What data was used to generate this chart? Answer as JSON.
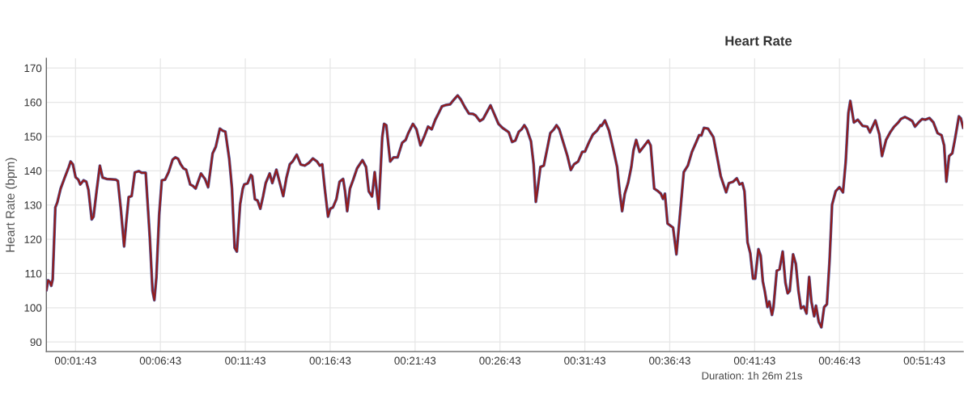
{
  "chart_data": {
    "type": "line",
    "title": "Heart Rate",
    "ylabel": "Heart Rate (bpm)",
    "annotations": [
      "Duration: 1h 26m 21s"
    ],
    "x": [
      0,
      0.0017,
      0.0035,
      0.0048,
      0.0062,
      0.0088,
      0.0107,
      0.014,
      0.018,
      0.022,
      0.0238,
      0.026,
      0.0287,
      0.0313,
      0.0333,
      0.0365,
      0.0392,
      0.0413,
      0.0445,
      0.0463,
      0.0493,
      0.0525,
      0.0552,
      0.0592,
      0.0683,
      0.0702,
      0.0732,
      0.0763,
      0.0783,
      0.0808,
      0.0837,
      0.0868,
      0.0908,
      0.0935,
      0.0975,
      0.1015,
      0.1042,
      0.106,
      0.108,
      0.1107,
      0.1133,
      0.1165,
      0.12,
      0.124,
      0.1267,
      0.1293,
      0.1318,
      0.1345,
      0.1372,
      0.1412,
      0.1438,
      0.1465,
      0.1518,
      0.1557,
      0.1588,
      0.1632,
      0.1663,
      0.1703,
      0.173,
      0.1757,
      0.1795,
      0.1822,
      0.1848,
      0.187,
      0.1902,
      0.1928,
      0.1942,
      0.1975,
      0.2007,
      0.202,
      0.2047,
      0.2073,
      0.21,
      0.2127,
      0.2153,
      0.2192,
      0.2218,
      0.2258,
      0.2285,
      0.2325,
      0.2357,
      0.239,
      0.2417,
      0.2458,
      0.2497,
      0.2537,
      0.2577,
      0.2617,
      0.2657,
      0.2683,
      0.2708,
      0.2733,
      0.2765,
      0.2787,
      0.2813,
      0.2847,
      0.2878,
      0.2913,
      0.2932,
      0.2953,
      0.298,
      0.3012,
      0.305,
      0.3103,
      0.3138,
      0.3165,
      0.3197,
      0.3223,
      0.3262,
      0.3297,
      0.3315,
      0.3337,
      0.3375,
      0.3408,
      0.3448,
      0.3493,
      0.3527,
      0.3553,
      0.3598,
      0.3633,
      0.3672,
      0.3712,
      0.3747,
      0.3783,
      0.3818,
      0.3852,
      0.3883,
      0.3923,
      0.3963,
      0.399,
      0.4037,
      0.4068,
      0.4108,
      0.4148,
      0.4188,
      0.4215,
      0.4255,
      0.4287,
      0.432,
      0.436,
      0.4392,
      0.4438,
      0.4478,
      0.4518,
      0.454,
      0.4572,
      0.4603,
      0.4638,
      0.4665,
      0.4692,
      0.4717,
      0.4757,
      0.4783,
      0.4805,
      0.4823,
      0.485,
      0.4883,
      0.4915,
      0.4947,
      0.4982,
      0.5008,
      0.5035,
      0.5075,
      0.5115,
      0.5148,
      0.518,
      0.522,
      0.526,
      0.5287,
      0.5325,
      0.5365,
      0.5405,
      0.544,
      0.545,
      0.5483,
      0.5523,
      0.5563,
      0.5603,
      0.563,
      0.5652,
      0.5678,
      0.571,
      0.5742,
      0.5763,
      0.579,
      0.5823,
      0.5867,
      0.5908,
      0.5932,
      0.5967,
      0.6005,
      0.6032,
      0.6053,
      0.6072,
      0.6098,
      0.6152,
      0.6185,
      0.6217,
      0.6257,
      0.6297,
      0.6337,
      0.6377,
      0.6408,
      0.643,
      0.6455,
      0.6495,
      0.6548,
      0.6583,
      0.662,
      0.6673,
      0.67,
      0.6742,
      0.6778,
      0.6805,
      0.6832,
      0.6853,
      0.6883,
      0.691,
      0.6937,
      0.6958,
      0.699,
      0.7012,
      0.7033,
      0.7052,
      0.7078,
      0.7097,
      0.7123,
      0.7138,
      0.717,
      0.7197,
      0.7228,
      0.7255,
      0.7277,
      0.7297,
      0.733,
      0.7357,
      0.7383,
      0.7408,
      0.7435,
      0.7462,
      0.7488,
      0.751,
      0.7537,
      0.7555,
      0.7582,
      0.7608,
      0.7635,
      0.7662,
      0.7688,
      0.7713,
      0.7748,
      0.7785,
      0.782,
      0.7847,
      0.7873,
      0.7892,
      0.7927,
      0.7965,
      0.8013,
      0.8058,
      0.8085,
      0.8138,
      0.8177,
      0.8203,
      0.8243,
      0.8283,
      0.8323,
      0.8363,
      0.8388,
      0.8428,
      0.8468,
      0.85,
      0.8527,
      0.8562,
      0.8597,
      0.8628,
      0.8668,
      0.8708,
      0.8748,
      0.8787,
      0.8813,
      0.8835,
      0.8862,
      0.8893,
      0.8918,
      0.8958,
      0.8977,
      0.9
    ],
    "series": [
      {
        "color": "#4a5fa8",
        "values": [
          105,
          108,
          107.5,
          106.4,
          108.3,
          129.3,
          130.7,
          134.8,
          138,
          141.1,
          142.7,
          141.9,
          138.1,
          137.4,
          136,
          137.2,
          136.8,
          134.4,
          125.8,
          126.6,
          134.1,
          141.5,
          138,
          137.6,
          137.4,
          137,
          128.5,
          117.9,
          124.6,
          132.3,
          132.6,
          139.5,
          139.9,
          139.4,
          139.4,
          120.7,
          104.9,
          102.2,
          108.9,
          127,
          137.2,
          137.4,
          139.6,
          143.3,
          143.9,
          143.5,
          141.9,
          140.7,
          140.3,
          136,
          135.6,
          134.8,
          139.2,
          137.6,
          135.2,
          145.1,
          147,
          152.3,
          151.7,
          151.4,
          143.5,
          134.8,
          117.5,
          116.4,
          130.2,
          134.8,
          136,
          136.3,
          138.8,
          138.4,
          131.7,
          131.3,
          128.9,
          132.5,
          136.4,
          139.2,
          136.4,
          140.3,
          137.2,
          132.6,
          138,
          141.9,
          142.7,
          144.7,
          141.8,
          141.5,
          142.3,
          143.6,
          142.7,
          141.5,
          141.9,
          134.8,
          126.6,
          128.9,
          129.3,
          131.7,
          136.8,
          137.6,
          134,
          128.2,
          134.8,
          137.4,
          140.7,
          143.1,
          141.1,
          134,
          132.5,
          139.6,
          128.9,
          149.8,
          153.7,
          153.3,
          142.7,
          143.9,
          143.9,
          148.2,
          149,
          151,
          153.7,
          152.1,
          147.4,
          150.2,
          152.9,
          152.1,
          154.9,
          156.9,
          158.8,
          159.2,
          159.4,
          160.4,
          162,
          160.8,
          158.6,
          156.7,
          156.6,
          156.1,
          154.5,
          155.1,
          156.9,
          159.1,
          156.9,
          153.7,
          152.5,
          151.7,
          151.2,
          148.4,
          148.8,
          151.4,
          152.1,
          153.3,
          152.1,
          148.6,
          141.9,
          130.9,
          134.8,
          141.1,
          141.5,
          146.2,
          151,
          152.1,
          153.3,
          152.1,
          148.2,
          144.3,
          140.2,
          141.9,
          142.7,
          145.5,
          145.6,
          148.2,
          150.6,
          151.7,
          153.3,
          153.1,
          154.7,
          151.7,
          146.6,
          141.1,
          133.3,
          128.2,
          133.3,
          136.4,
          141.1,
          145.9,
          149,
          145.5,
          147.2,
          148.8,
          147.4,
          134.8,
          134,
          133.3,
          131.8,
          133.3,
          124.6,
          123.4,
          115.6,
          126.2,
          139.6,
          141.5,
          145.5,
          148.2,
          150.4,
          150.3,
          152.5,
          152.3,
          149.8,
          144.3,
          138.4,
          133.7,
          136.4,
          136.8,
          137.8,
          136,
          136.4,
          134,
          119.1,
          115.9,
          108.5,
          108.5,
          117.1,
          115.2,
          107.7,
          104.9,
          100.2,
          101.8,
          97.9,
          100.2,
          110.8,
          111.2,
          116.4,
          107.3,
          104.2,
          104.9,
          115.6,
          112.8,
          104.9,
          99.8,
          100.4,
          98.3,
          109,
          101.8,
          97.5,
          100.6,
          95.9,
          94.3,
          100.2,
          101,
          113.6,
          130.1,
          134,
          135.2,
          133.7,
          142.7,
          156.9,
          160.4,
          154.1,
          154.9,
          153.1,
          152.9,
          151.2,
          154.7,
          150.6,
          144.3,
          149,
          151.2,
          152.9,
          154.1,
          155.1,
          155.7,
          155.1,
          154.5,
          152.9,
          154.1,
          155.1,
          154.9,
          155.4,
          154.1,
          151,
          150.4,
          147.4,
          136.8,
          144.3,
          145.1,
          149,
          155.9,
          155.3,
          152.5
        ]
      },
      {
        "color": "#931c1c",
        "values": [
          105,
          108,
          107.5,
          106.4,
          108.3,
          129.3,
          130.7,
          134.8,
          138,
          141.1,
          142.7,
          141.9,
          138.1,
          137.4,
          136,
          137.2,
          136.8,
          134.4,
          125.8,
          126.6,
          134.1,
          141.5,
          138,
          137.6,
          137.4,
          137,
          128.5,
          117.9,
          124.6,
          132.3,
          132.6,
          139.5,
          139.9,
          139.4,
          139.4,
          120.7,
          104.9,
          102.2,
          108.9,
          127,
          137.2,
          137.4,
          139.6,
          143.3,
          143.9,
          143.5,
          141.9,
          140.7,
          140.3,
          136,
          135.6,
          134.8,
          139.2,
          137.6,
          135.2,
          145.1,
          147,
          152.3,
          151.7,
          151.4,
          143.5,
          134.8,
          117.5,
          116.4,
          130.2,
          134.8,
          136,
          136.3,
          138.8,
          138.4,
          131.7,
          131.3,
          128.9,
          132.5,
          136.4,
          139.2,
          136.4,
          140.3,
          137.2,
          132.6,
          138,
          141.9,
          142.7,
          144.7,
          141.8,
          141.5,
          142.3,
          143.6,
          142.7,
          141.5,
          141.9,
          134.8,
          126.6,
          128.9,
          129.3,
          131.7,
          136.8,
          137.6,
          134,
          128.2,
          134.8,
          137.4,
          140.7,
          143.1,
          141.1,
          134,
          132.5,
          139.6,
          128.9,
          149.8,
          153.7,
          153.3,
          142.7,
          143.9,
          143.9,
          148.2,
          149,
          151,
          153.7,
          152.1,
          147.4,
          150.2,
          152.9,
          152.1,
          154.9,
          156.9,
          158.8,
          159.2,
          159.4,
          160.4,
          162,
          160.8,
          158.6,
          156.7,
          156.6,
          156.1,
          154.5,
          155.1,
          156.9,
          159.1,
          156.9,
          153.7,
          152.5,
          151.7,
          151.2,
          148.4,
          148.8,
          151.4,
          152.1,
          153.3,
          152.1,
          148.6,
          141.9,
          130.9,
          134.8,
          141.1,
          141.5,
          146.2,
          151,
          152.1,
          153.3,
          152.1,
          148.2,
          144.3,
          140.2,
          141.9,
          142.7,
          145.5,
          145.6,
          148.2,
          150.6,
          151.7,
          153.3,
          153.1,
          154.7,
          151.7,
          146.6,
          141.1,
          133.3,
          128.2,
          133.3,
          136.4,
          141.1,
          145.9,
          149,
          145.5,
          147.2,
          148.8,
          147.4,
          134.8,
          134,
          133.3,
          131.8,
          133.3,
          124.6,
          123.4,
          115.6,
          126.2,
          139.6,
          141.5,
          145.5,
          148.2,
          150.4,
          150.3,
          152.5,
          152.3,
          149.8,
          144.3,
          138.4,
          133.7,
          136.4,
          136.8,
          137.8,
          136,
          136.4,
          134,
          119.1,
          115.9,
          108.5,
          108.5,
          117.1,
          115.2,
          107.7,
          104.9,
          100.2,
          101.8,
          97.9,
          100.2,
          110.8,
          111.2,
          116.4,
          107.3,
          104.2,
          104.9,
          115.6,
          112.8,
          104.9,
          99.8,
          100.4,
          98.3,
          109,
          101.8,
          97.5,
          100.6,
          95.9,
          94.3,
          100.2,
          101,
          113.6,
          130.1,
          134,
          135.2,
          133.7,
          142.7,
          156.9,
          160.4,
          154.1,
          154.9,
          153.1,
          152.9,
          151.2,
          154.7,
          150.6,
          144.3,
          149,
          151.2,
          152.9,
          154.1,
          155.1,
          155.7,
          155.1,
          154.5,
          152.9,
          154.1,
          155.1,
          154.9,
          155.4,
          154.1,
          151,
          150.4,
          147.4,
          136.8,
          144.3,
          145.1,
          149,
          155.9,
          155.3,
          152.5
        ]
      }
    ],
    "xlim": [
      0,
      0.9
    ],
    "ylim": [
      87.2,
      172.8
    ],
    "xticks": [
      {
        "value": 0.02861,
        "label": "00:01:43"
      },
      {
        "value": 0.11194,
        "label": "00:06:43"
      },
      {
        "value": 0.19528,
        "label": "00:11:43"
      },
      {
        "value": 0.27861,
        "label": "00:16:43"
      },
      {
        "value": 0.36194,
        "label": "00:21:43"
      },
      {
        "value": 0.44528,
        "label": "00:26:43"
      },
      {
        "value": 0.52861,
        "label": "00:31:43"
      },
      {
        "value": 0.61194,
        "label": "00:36:43"
      },
      {
        "value": 0.69528,
        "label": "00:41:43"
      },
      {
        "value": 0.77861,
        "label": "00:46:43"
      },
      {
        "value": 0.86194,
        "label": "00:51:43"
      }
    ],
    "yticks": [
      90,
      100,
      110,
      120,
      130,
      140,
      150,
      160,
      170
    ],
    "grid": true,
    "line_style": "solid"
  }
}
